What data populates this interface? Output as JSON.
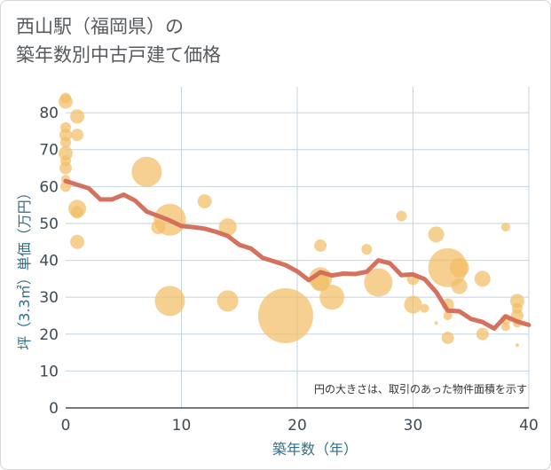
{
  "title_line1": "西山駅（福岡県）の",
  "title_line2": "築年数別中古戸建て価格",
  "chart_data": {
    "type": "scatter",
    "xlabel": "築年数（年）",
    "ylabel": "坪（3.3㎡）単価（万円）",
    "xlim": [
      0,
      40
    ],
    "ylim": [
      0,
      87
    ],
    "xticks": [
      0,
      10,
      20,
      30,
      40
    ],
    "yticks": [
      0,
      10,
      20,
      30,
      40,
      50,
      60,
      70,
      80
    ],
    "grid": true,
    "note": "円の大きさは、取引のあった物件面積を示す",
    "bubble_color": "#f3be67",
    "line_color": "#d36a56",
    "bubbles": [
      {
        "x": 0,
        "y": 84,
        "s": 6
      },
      {
        "x": 0,
        "y": 83,
        "s": 8
      },
      {
        "x": 0,
        "y": 76,
        "s": 6
      },
      {
        "x": 0,
        "y": 74,
        "s": 7
      },
      {
        "x": 0,
        "y": 72,
        "s": 6
      },
      {
        "x": 0,
        "y": 69,
        "s": 8
      },
      {
        "x": 0,
        "y": 67,
        "s": 6
      },
      {
        "x": 0,
        "y": 65,
        "s": 7
      },
      {
        "x": 0,
        "y": 62,
        "s": 5
      },
      {
        "x": 0,
        "y": 60,
        "s": 6
      },
      {
        "x": 1,
        "y": 79,
        "s": 8
      },
      {
        "x": 1,
        "y": 74,
        "s": 7
      },
      {
        "x": 1,
        "y": 54,
        "s": 10
      },
      {
        "x": 1,
        "y": 53,
        "s": 7
      },
      {
        "x": 1,
        "y": 45,
        "s": 8
      },
      {
        "x": 7,
        "y": 64,
        "s": 17
      },
      {
        "x": 8,
        "y": 49,
        "s": 8
      },
      {
        "x": 9,
        "y": 51,
        "s": 18
      },
      {
        "x": 9,
        "y": 29,
        "s": 17
      },
      {
        "x": 12,
        "y": 56,
        "s": 8
      },
      {
        "x": 14,
        "y": 49,
        "s": 10
      },
      {
        "x": 14,
        "y": 29,
        "s": 12
      },
      {
        "x": 19,
        "y": 25,
        "s": 31
      },
      {
        "x": 22,
        "y": 44,
        "s": 7
      },
      {
        "x": 22,
        "y": 35,
        "s": 13
      },
      {
        "x": 22,
        "y": 34,
        "s": 10
      },
      {
        "x": 23,
        "y": 30,
        "s": 14
      },
      {
        "x": 26,
        "y": 43,
        "s": 6
      },
      {
        "x": 27,
        "y": 34,
        "s": 16
      },
      {
        "x": 29,
        "y": 52,
        "s": 6
      },
      {
        "x": 30,
        "y": 35,
        "s": 7
      },
      {
        "x": 30,
        "y": 28,
        "s": 10
      },
      {
        "x": 31,
        "y": 27,
        "s": 5
      },
      {
        "x": 32,
        "y": 47,
        "s": 9
      },
      {
        "x": 32,
        "y": 23,
        "s": 2
      },
      {
        "x": 33,
        "y": 38,
        "s": 22
      },
      {
        "x": 33,
        "y": 28,
        "s": 7
      },
      {
        "x": 33,
        "y": 25,
        "s": 5
      },
      {
        "x": 33,
        "y": 19,
        "s": 7
      },
      {
        "x": 34,
        "y": 38,
        "s": 11
      },
      {
        "x": 34,
        "y": 33,
        "s": 9
      },
      {
        "x": 36,
        "y": 35,
        "s": 9
      },
      {
        "x": 36,
        "y": 20,
        "s": 7
      },
      {
        "x": 38,
        "y": 49,
        "s": 5
      },
      {
        "x": 38,
        "y": 24,
        "s": 6
      },
      {
        "x": 38,
        "y": 22,
        "s": 5
      },
      {
        "x": 39,
        "y": 29,
        "s": 8
      },
      {
        "x": 39,
        "y": 27,
        "s": 6
      },
      {
        "x": 39,
        "y": 25,
        "s": 7
      },
      {
        "x": 39,
        "y": 23,
        "s": 5
      },
      {
        "x": 39,
        "y": 17,
        "s": 2
      }
    ],
    "trend": {
      "x": [
        0,
        1,
        2,
        3,
        4,
        5,
        6,
        7,
        8,
        9,
        10,
        11,
        12,
        13,
        14,
        15,
        16,
        17,
        18,
        19,
        20,
        21,
        22,
        23,
        24,
        25,
        26,
        27,
        28,
        29,
        30,
        31,
        32,
        33,
        34,
        35,
        36,
        37,
        38,
        39,
        40
      ],
      "y": [
        61.5,
        60.5,
        59.5,
        56.5,
        56.5,
        57.8,
        56.2,
        53.2,
        52.0,
        50.8,
        49.3,
        49.0,
        48.6,
        47.7,
        46.6,
        44.2,
        43.2,
        40.7,
        39.7,
        38.7,
        37.0,
        34.6,
        36.8,
        35.9,
        36.4,
        36.3,
        36.9,
        40.0,
        39.2,
        36.0,
        36.2,
        34.9,
        31.4,
        26.4,
        26.2,
        24.1,
        23.3,
        21.5,
        24.8,
        23.4,
        22.5
      ]
    }
  }
}
